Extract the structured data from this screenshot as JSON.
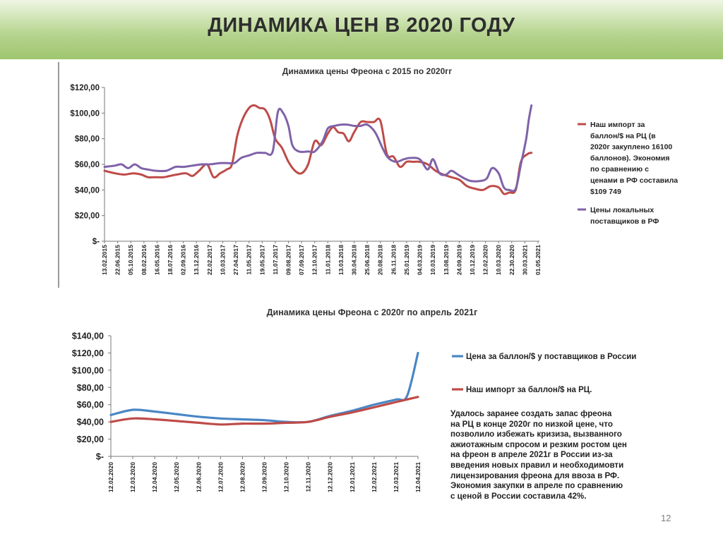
{
  "page": {
    "title": "ДИНАМИКА ЦЕН В 2020 ГОДУ",
    "page_number": "12"
  },
  "note_lines": [
    "Удалось заранее создать запас фреона",
    "на РЦ в конце 2020г по низкой цене, что",
    "позволило избежать кризиза, вызванного",
    "ажиотажным спросом и резким ростом цен",
    "на фреон в апреле 2021г в России из-за",
    "введения новых правил и необходимовти",
    "лицензирования фреона для ввоза  в РФ.",
    "Экономия закупки в апреле по сравнению",
    "с ценой в России составила 42%."
  ],
  "colors": {
    "red": "#be4b48",
    "purple": "#7f62a8",
    "blue": "#4a86c5",
    "header_green": "#b4d38c"
  },
  "chart_data": [
    {
      "type": "line",
      "title": "Динамика цены Фреона с 2015  по 2020гг",
      "y_ticks": [
        "$120,00",
        "$100,00",
        "$80,00",
        "$60,00",
        "$40,00",
        "$20,00",
        "$-"
      ],
      "ylim": [
        0,
        120
      ],
      "x_ticks": [
        "13.02.2015",
        "22.06.2015",
        "05.10.2015",
        "08.02.2016",
        "16.05.2016",
        "18.07.2016",
        "02.09.2016",
        "13.12.2016",
        "22.02.2017",
        "10.03.2017",
        "27.04.2017",
        "11.05.2017",
        "19.05.2017",
        "11.07.2017",
        "09.08.2017",
        "07.09.2017",
        "12.10.2017",
        "11.01.2018",
        "13.03.2018",
        "30.04.2018",
        "25.06.2018",
        "20.08.2018",
        "26.11.2018",
        "25.01.2019",
        "04.03.2019",
        "10.03.2019",
        "13.08.2019",
        "24.09.2019",
        "10.12.2019",
        "12.02.2020",
        "10.03.2020",
        "22.30.2020",
        "30.03.2021",
        "01.05.2021"
      ],
      "legend_placement": "right",
      "grid": false,
      "series": [
        {
          "name_lines": [
            "Наш импорт за",
            "баллон/$ на РЦ (в",
            "2020г закуплено 16100",
            "баллонов). Экономия",
            "по сравнению  с",
            "ценами в РФ составила",
            "$109 749"
          ],
          "color": "#be4b48",
          "points": [
            [
              0,
              55
            ],
            [
              0.8,
              53
            ],
            [
              1.5,
              52
            ],
            [
              2.2,
              53
            ],
            [
              2.8,
              52
            ],
            [
              3.3,
              50
            ],
            [
              3.8,
              50
            ],
            [
              4.5,
              50
            ],
            [
              5,
              51
            ],
            [
              5.5,
              52
            ],
            [
              6.2,
              53
            ],
            [
              6.7,
              51
            ],
            [
              7.2,
              55
            ],
            [
              7.8,
              60
            ],
            [
              8.3,
              50
            ],
            [
              8.8,
              53
            ],
            [
              9.3,
              56
            ],
            [
              9.7,
              60
            ],
            [
              10.1,
              82
            ],
            [
              10.5,
              95
            ],
            [
              11,
              104
            ],
            [
              11.4,
              106
            ],
            [
              11.8,
              104
            ],
            [
              12.2,
              103
            ],
            [
              12.6,
              95
            ],
            [
              13,
              80
            ],
            [
              13.5,
              73
            ],
            [
              14,
              62
            ],
            [
              14.5,
              55
            ],
            [
              15,
              53
            ],
            [
              15.5,
              60
            ],
            [
              16,
              78
            ],
            [
              16.5,
              75
            ],
            [
              17,
              84
            ],
            [
              17.4,
              89
            ],
            [
              17.8,
              85
            ],
            [
              18.2,
              84
            ],
            [
              18.6,
              78
            ],
            [
              19,
              85
            ],
            [
              19.5,
              93
            ],
            [
              20,
              93
            ],
            [
              20.5,
              93
            ],
            [
              21,
              94
            ],
            [
              21.5,
              68
            ],
            [
              22,
              66
            ],
            [
              22.5,
              58
            ],
            [
              23,
              62
            ],
            [
              23.5,
              62
            ],
            [
              24,
              62
            ],
            [
              24.6,
              60
            ],
            [
              25.2,
              55
            ],
            [
              25.8,
              52
            ],
            [
              26.4,
              50
            ],
            [
              27,
              48
            ],
            [
              27.6,
              43
            ],
            [
              28.2,
              41
            ],
            [
              28.8,
              40
            ],
            [
              29.4,
              43
            ],
            [
              30,
              42
            ],
            [
              30.4,
              37
            ],
            [
              30.8,
              38
            ],
            [
              31.3,
              40
            ],
            [
              31.7,
              62
            ],
            [
              32.2,
              68
            ],
            [
              32.5,
              69
            ]
          ]
        },
        {
          "name_lines": [
            "Цены локальных",
            "поставщиков  в РФ"
          ],
          "color": "#7f62a8",
          "points": [
            [
              0,
              58
            ],
            [
              0.8,
              59
            ],
            [
              1.3,
              60
            ],
            [
              1.8,
              57
            ],
            [
              2.3,
              60
            ],
            [
              2.8,
              57
            ],
            [
              3.3,
              56
            ],
            [
              3.9,
              55
            ],
            [
              4.7,
              55
            ],
            [
              5.4,
              58
            ],
            [
              6,
              58
            ],
            [
              6.7,
              59
            ],
            [
              7.4,
              60
            ],
            [
              8,
              60
            ],
            [
              8.8,
              61
            ],
            [
              9.4,
              61
            ],
            [
              9.9,
              61
            ],
            [
              10.4,
              65
            ],
            [
              11,
              67
            ],
            [
              11.6,
              69
            ],
            [
              12.2,
              69
            ],
            [
              12.8,
              70
            ],
            [
              13.2,
              101
            ],
            [
              13.6,
              100
            ],
            [
              14,
              90
            ],
            [
              14.3,
              75
            ],
            [
              14.8,
              70
            ],
            [
              15.5,
              70
            ],
            [
              16,
              70
            ],
            [
              16.6,
              78
            ],
            [
              17,
              88
            ],
            [
              17.5,
              90
            ],
            [
              18,
              91
            ],
            [
              18.5,
              91
            ],
            [
              19,
              90
            ],
            [
              19.5,
              90
            ],
            [
              20,
              91
            ],
            [
              20.6,
              85
            ],
            [
              21.2,
              72
            ],
            [
              21.6,
              65
            ],
            [
              22.2,
              62
            ],
            [
              22.8,
              64
            ],
            [
              23.3,
              65
            ],
            [
              24,
              64
            ],
            [
              24.6,
              56
            ],
            [
              25,
              64
            ],
            [
              25.5,
              53
            ],
            [
              26,
              52
            ],
            [
              26.4,
              55
            ],
            [
              26.9,
              52
            ],
            [
              27.4,
              49
            ],
            [
              27.9,
              47
            ],
            [
              28.6,
              47
            ],
            [
              29.1,
              49
            ],
            [
              29.5,
              57
            ],
            [
              30,
              53
            ],
            [
              30.4,
              42
            ],
            [
              30.8,
              40
            ],
            [
              31.3,
              41
            ],
            [
              31.7,
              60
            ],
            [
              32.1,
              80
            ],
            [
              32.3,
              95
            ],
            [
              32.5,
              106
            ]
          ]
        }
      ]
    },
    {
      "type": "line",
      "title": "Динамика цены Фреона с 2020г по апрель 2021г",
      "y_ticks": [
        "$140,00",
        "$120,00",
        "$100,00",
        "$80,00",
        "$60,00",
        "$40,00",
        "$20,00",
        "$-"
      ],
      "ylim": [
        0,
        140
      ],
      "categories": [
        "12.02.2020",
        "12.03.2020",
        "12.04.2020",
        "12.05.2020",
        "12.06.2020",
        "12.07.2020",
        "12.08.2020",
        "12.09.2020",
        "12.10.2020",
        "12.11.2020",
        "12.12.2020",
        "12.01.2021",
        "12.02.2021",
        "12.03.2021",
        "12.04.2021"
      ],
      "legend_placement": "right",
      "grid": false,
      "series": [
        {
          "name": "Цена за баллон/$ у поставщиков в России",
          "color": "#4a86c5",
          "points": [
            [
              0,
              48
            ],
            [
              1,
              54
            ],
            [
              2,
              52
            ],
            [
              3,
              49
            ],
            [
              4,
              46
            ],
            [
              5,
              44
            ],
            [
              6,
              43
            ],
            [
              7,
              42
            ],
            [
              8,
              40
            ],
            [
              9,
              40
            ],
            [
              10,
              47
            ],
            [
              11,
              53
            ],
            [
              12,
              60
            ],
            [
              13,
              66
            ],
            [
              13.5,
              70
            ],
            [
              14,
              120
            ]
          ]
        },
        {
          "name": "Наш импорт за баллон/$ на РЦ.",
          "color": "#be4b48",
          "points": [
            [
              0,
              40
            ],
            [
              1,
              44
            ],
            [
              2,
              43
            ],
            [
              3,
              41
            ],
            [
              4,
              39
            ],
            [
              5,
              37
            ],
            [
              6,
              38
            ],
            [
              7,
              38
            ],
            [
              8,
              39
            ],
            [
              9,
              40
            ],
            [
              10,
              46
            ],
            [
              11,
              51
            ],
            [
              12,
              57
            ],
            [
              13,
              63
            ],
            [
              14,
              69
            ]
          ]
        }
      ]
    }
  ]
}
